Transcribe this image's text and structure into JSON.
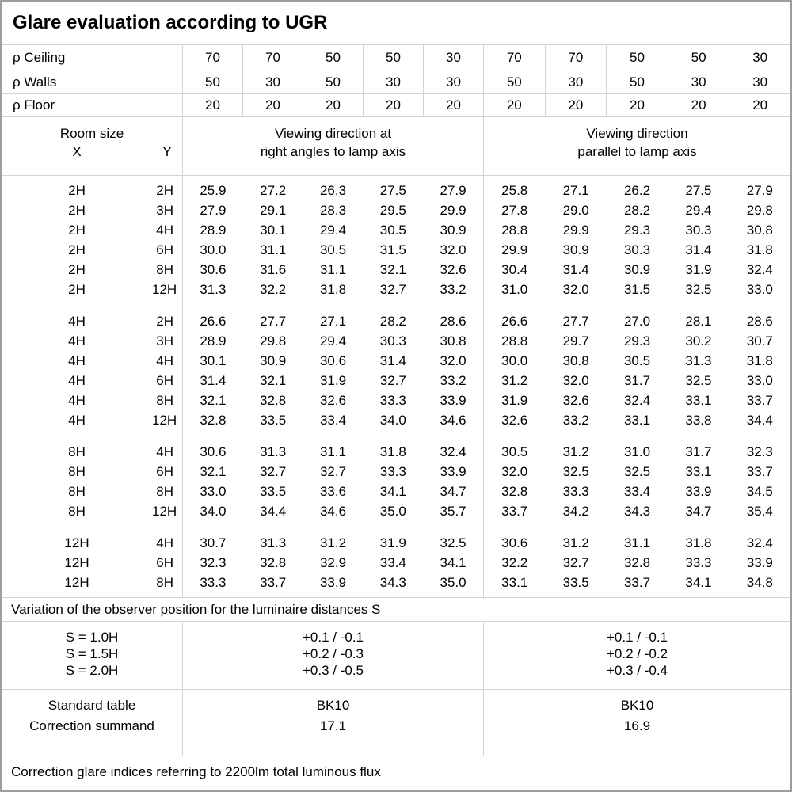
{
  "title": "Glare evaluation according to UGR",
  "colors": {
    "grid": "#d4d4d4",
    "frame": "#9d9d9d",
    "text": "#000000",
    "background": "#ffffff"
  },
  "reflectance_rows": [
    {
      "label": "ρ Ceiling",
      "values": [
        "70",
        "70",
        "50",
        "50",
        "30",
        "70",
        "70",
        "50",
        "50",
        "30"
      ]
    },
    {
      "label": "ρ Walls",
      "values": [
        "50",
        "30",
        "50",
        "30",
        "30",
        "50",
        "30",
        "50",
        "30",
        "30"
      ]
    },
    {
      "label": "ρ Floor",
      "values": [
        "20",
        "20",
        "20",
        "20",
        "20",
        "20",
        "20",
        "20",
        "20",
        "20"
      ]
    }
  ],
  "header": {
    "room_size": "Room size",
    "x_label": "X",
    "y_label": "Y",
    "group1_line1": "Viewing direction at",
    "group1_line2": "right angles to lamp axis",
    "group2_line1": "Viewing direction",
    "group2_line2": "parallel to lamp axis"
  },
  "blocks": [
    {
      "rows": [
        {
          "x": "2H",
          "y": "2H",
          "right_angles": [
            "25.9",
            "27.2",
            "26.3",
            "27.5",
            "27.9"
          ],
          "parallel": [
            "25.8",
            "27.1",
            "26.2",
            "27.5",
            "27.9"
          ]
        },
        {
          "x": "2H",
          "y": "3H",
          "right_angles": [
            "27.9",
            "29.1",
            "28.3",
            "29.5",
            "29.9"
          ],
          "parallel": [
            "27.8",
            "29.0",
            "28.2",
            "29.4",
            "29.8"
          ]
        },
        {
          "x": "2H",
          "y": "4H",
          "right_angles": [
            "28.9",
            "30.1",
            "29.4",
            "30.5",
            "30.9"
          ],
          "parallel": [
            "28.8",
            "29.9",
            "29.3",
            "30.3",
            "30.8"
          ]
        },
        {
          "x": "2H",
          "y": "6H",
          "right_angles": [
            "30.0",
            "31.1",
            "30.5",
            "31.5",
            "32.0"
          ],
          "parallel": [
            "29.9",
            "30.9",
            "30.3",
            "31.4",
            "31.8"
          ]
        },
        {
          "x": "2H",
          "y": "8H",
          "right_angles": [
            "30.6",
            "31.6",
            "31.1",
            "32.1",
            "32.6"
          ],
          "parallel": [
            "30.4",
            "31.4",
            "30.9",
            "31.9",
            "32.4"
          ]
        },
        {
          "x": "2H",
          "y": "12H",
          "right_angles": [
            "31.3",
            "32.2",
            "31.8",
            "32.7",
            "33.2"
          ],
          "parallel": [
            "31.0",
            "32.0",
            "31.5",
            "32.5",
            "33.0"
          ]
        }
      ]
    },
    {
      "rows": [
        {
          "x": "4H",
          "y": "2H",
          "right_angles": [
            "26.6",
            "27.7",
            "27.1",
            "28.2",
            "28.6"
          ],
          "parallel": [
            "26.6",
            "27.7",
            "27.0",
            "28.1",
            "28.6"
          ]
        },
        {
          "x": "4H",
          "y": "3H",
          "right_angles": [
            "28.9",
            "29.8",
            "29.4",
            "30.3",
            "30.8"
          ],
          "parallel": [
            "28.8",
            "29.7",
            "29.3",
            "30.2",
            "30.7"
          ]
        },
        {
          "x": "4H",
          "y": "4H",
          "right_angles": [
            "30.1",
            "30.9",
            "30.6",
            "31.4",
            "32.0"
          ],
          "parallel": [
            "30.0",
            "30.8",
            "30.5",
            "31.3",
            "31.8"
          ]
        },
        {
          "x": "4H",
          "y": "6H",
          "right_angles": [
            "31.4",
            "32.1",
            "31.9",
            "32.7",
            "33.2"
          ],
          "parallel": [
            "31.2",
            "32.0",
            "31.7",
            "32.5",
            "33.0"
          ]
        },
        {
          "x": "4H",
          "y": "8H",
          "right_angles": [
            "32.1",
            "32.8",
            "32.6",
            "33.3",
            "33.9"
          ],
          "parallel": [
            "31.9",
            "32.6",
            "32.4",
            "33.1",
            "33.7"
          ]
        },
        {
          "x": "4H",
          "y": "12H",
          "right_angles": [
            "32.8",
            "33.5",
            "33.4",
            "34.0",
            "34.6"
          ],
          "parallel": [
            "32.6",
            "33.2",
            "33.1",
            "33.8",
            "34.4"
          ]
        }
      ]
    },
    {
      "rows": [
        {
          "x": "8H",
          "y": "4H",
          "right_angles": [
            "30.6",
            "31.3",
            "31.1",
            "31.8",
            "32.4"
          ],
          "parallel": [
            "30.5",
            "31.2",
            "31.0",
            "31.7",
            "32.3"
          ]
        },
        {
          "x": "8H",
          "y": "6H",
          "right_angles": [
            "32.1",
            "32.7",
            "32.7",
            "33.3",
            "33.9"
          ],
          "parallel": [
            "32.0",
            "32.5",
            "32.5",
            "33.1",
            "33.7"
          ]
        },
        {
          "x": "8H",
          "y": "8H",
          "right_angles": [
            "33.0",
            "33.5",
            "33.6",
            "34.1",
            "34.7"
          ],
          "parallel": [
            "32.8",
            "33.3",
            "33.4",
            "33.9",
            "34.5"
          ]
        },
        {
          "x": "8H",
          "y": "12H",
          "right_angles": [
            "34.0",
            "34.4",
            "34.6",
            "35.0",
            "35.7"
          ],
          "parallel": [
            "33.7",
            "34.2",
            "34.3",
            "34.7",
            "35.4"
          ]
        }
      ]
    },
    {
      "rows": [
        {
          "x": "12H",
          "y": "4H",
          "right_angles": [
            "30.7",
            "31.3",
            "31.2",
            "31.9",
            "32.5"
          ],
          "parallel": [
            "30.6",
            "31.2",
            "31.1",
            "31.8",
            "32.4"
          ]
        },
        {
          "x": "12H",
          "y": "6H",
          "right_angles": [
            "32.3",
            "32.8",
            "32.9",
            "33.4",
            "34.1"
          ],
          "parallel": [
            "32.2",
            "32.7",
            "32.8",
            "33.3",
            "33.9"
          ]
        },
        {
          "x": "12H",
          "y": "8H",
          "right_angles": [
            "33.3",
            "33.7",
            "33.9",
            "34.3",
            "35.0"
          ],
          "parallel": [
            "33.1",
            "33.5",
            "33.7",
            "34.1",
            "34.8"
          ]
        }
      ]
    }
  ],
  "variation_note": "Variation of the observer position for the luminaire distances S",
  "s_table": {
    "labels": [
      "S = 1.0H",
      "S = 1.5H",
      "S = 2.0H"
    ],
    "right_angles": [
      "+0.1 / -0.1",
      "+0.2 / -0.3",
      "+0.3 / -0.5"
    ],
    "parallel": [
      "+0.1 / -0.1",
      "+0.2 / -0.2",
      "+0.3 / -0.4"
    ]
  },
  "standard_rows": [
    {
      "label": "Standard table",
      "right_angles": "BK10",
      "parallel": "BK10"
    },
    {
      "label": "Correction summand",
      "right_angles": "17.1",
      "parallel": "16.9"
    }
  ],
  "footer": "Correction glare indices referring to 2200lm total luminous flux"
}
